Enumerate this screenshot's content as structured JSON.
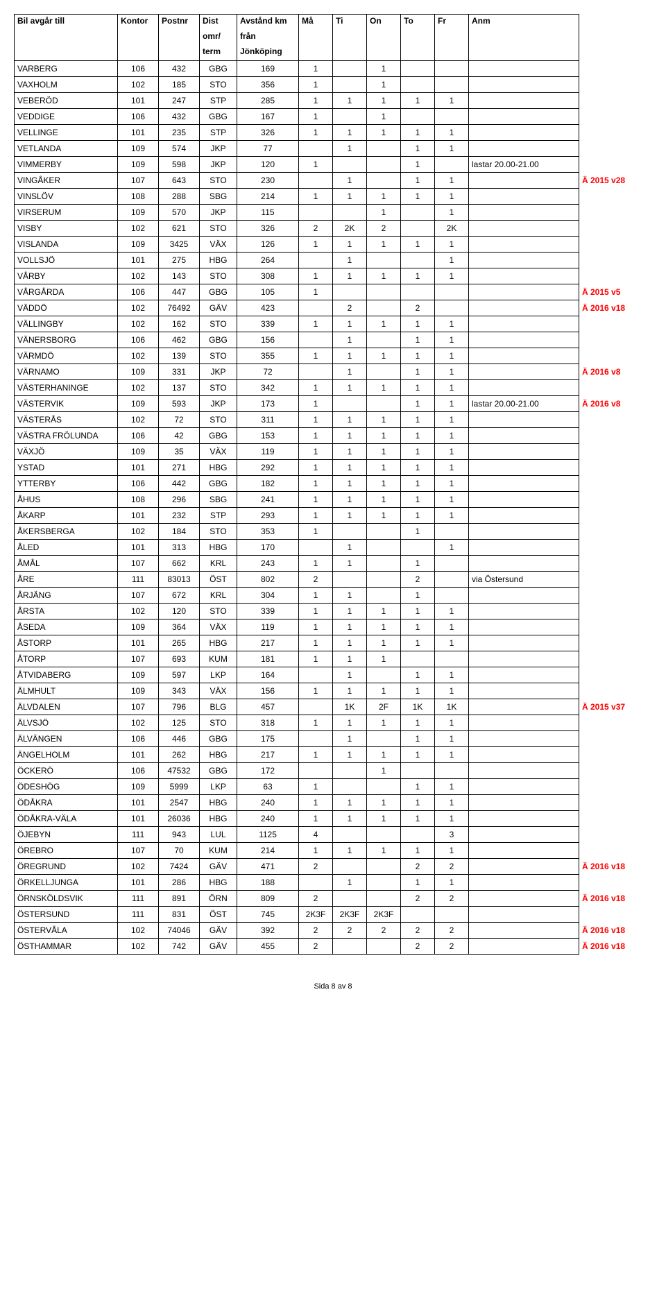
{
  "headers": {
    "col0": "Bil avgår till",
    "col1": "Kontor",
    "col2": "Postnr",
    "col3_line1": "Dist",
    "col3_line2": "omr/",
    "col3_line3": "term",
    "col4_line1": "Avstånd km",
    "col4_line2": "från",
    "col4_line3": "Jönköping",
    "col5": "Må",
    "col6": "Ti",
    "col7": "On",
    "col8": "To",
    "col9": "Fr",
    "col10": "Anm"
  },
  "rows": [
    {
      "name": "VARBERG",
      "kontor": "106",
      "postnr": "432",
      "dist": "GBG",
      "avstand": "169",
      "ma": "1",
      "ti": "",
      "on": "1",
      "to": "",
      "fr": "",
      "anm": "",
      "note": ""
    },
    {
      "name": "VAXHOLM",
      "kontor": "102",
      "postnr": "185",
      "dist": "STO",
      "avstand": "356",
      "ma": "1",
      "ti": "",
      "on": "1",
      "to": "",
      "fr": "",
      "anm": "",
      "note": ""
    },
    {
      "name": "VEBERÖD",
      "kontor": "101",
      "postnr": "247",
      "dist": "STP",
      "avstand": "285",
      "ma": "1",
      "ti": "1",
      "on": "1",
      "to": "1",
      "fr": "1",
      "anm": "",
      "note": ""
    },
    {
      "name": "VEDDIGE",
      "kontor": "106",
      "postnr": "432",
      "dist": "GBG",
      "avstand": "167",
      "ma": "1",
      "ti": "",
      "on": "1",
      "to": "",
      "fr": "",
      "anm": "",
      "note": ""
    },
    {
      "name": "VELLINGE",
      "kontor": "101",
      "postnr": "235",
      "dist": "STP",
      "avstand": "326",
      "ma": "1",
      "ti": "1",
      "on": "1",
      "to": "1",
      "fr": "1",
      "anm": "",
      "note": ""
    },
    {
      "name": "VETLANDA",
      "kontor": "109",
      "postnr": "574",
      "dist": "JKP",
      "avstand": "77",
      "ma": "",
      "ti": "1",
      "on": "",
      "to": "1",
      "fr": "1",
      "anm": "",
      "note": ""
    },
    {
      "name": "VIMMERBY",
      "kontor": "109",
      "postnr": "598",
      "dist": "JKP",
      "avstand": "120",
      "ma": "1",
      "ti": "",
      "on": "",
      "to": "1",
      "fr": "",
      "anm": "lastar 20.00-21.00",
      "note": ""
    },
    {
      "name": "VINGÅKER",
      "kontor": "107",
      "postnr": "643",
      "dist": "STO",
      "avstand": "230",
      "ma": "",
      "ti": "1",
      "on": "",
      "to": "1",
      "fr": "1",
      "anm": "",
      "note": "Ä 2015 v28"
    },
    {
      "name": "VINSLÖV",
      "kontor": "108",
      "postnr": "288",
      "dist": "SBG",
      "avstand": "214",
      "ma": "1",
      "ti": "1",
      "on": "1",
      "to": "1",
      "fr": "1",
      "anm": "",
      "note": ""
    },
    {
      "name": "VIRSERUM",
      "kontor": "109",
      "postnr": "570",
      "dist": "JKP",
      "avstand": "115",
      "ma": "",
      "ti": "",
      "on": "1",
      "to": "",
      "fr": "1",
      "anm": "",
      "note": ""
    },
    {
      "name": "VISBY",
      "kontor": "102",
      "postnr": "621",
      "dist": "STO",
      "avstand": "326",
      "ma": "2",
      "ti": "2K",
      "on": "2",
      "to": "",
      "fr": "2K",
      "anm": "",
      "note": ""
    },
    {
      "name": "VISLANDA",
      "kontor": "109",
      "postnr": "3425",
      "dist": "VÄX",
      "avstand": "126",
      "ma": "1",
      "ti": "1",
      "on": "1",
      "to": "1",
      "fr": "1",
      "anm": "",
      "note": ""
    },
    {
      "name": "VOLLSJÖ",
      "kontor": "101",
      "postnr": "275",
      "dist": "HBG",
      "avstand": "264",
      "ma": "",
      "ti": "1",
      "on": "",
      "to": "",
      "fr": "1",
      "anm": "",
      "note": ""
    },
    {
      "name": "VÅRBY",
      "kontor": "102",
      "postnr": "143",
      "dist": "STO",
      "avstand": "308",
      "ma": "1",
      "ti": "1",
      "on": "1",
      "to": "1",
      "fr": "1",
      "anm": "",
      "note": ""
    },
    {
      "name": "VÅRGÅRDA",
      "kontor": "106",
      "postnr": "447",
      "dist": "GBG",
      "avstand": "105",
      "ma": "1",
      "ti": "",
      "on": "",
      "to": "",
      "fr": "",
      "anm": "",
      "note": "Ä 2015 v5"
    },
    {
      "name": "VÄDDÖ",
      "kontor": "102",
      "postnr": "76492",
      "dist": "GÄV",
      "avstand": "423",
      "ma": "",
      "ti": "2",
      "on": "",
      "to": "2",
      "fr": "",
      "anm": "",
      "note": "Ä 2016 v18"
    },
    {
      "name": "VÄLLINGBY",
      "kontor": "102",
      "postnr": "162",
      "dist": "STO",
      "avstand": "339",
      "ma": "1",
      "ti": "1",
      "on": "1",
      "to": "1",
      "fr": "1",
      "anm": "",
      "note": ""
    },
    {
      "name": "VÄNERSBORG",
      "kontor": "106",
      "postnr": "462",
      "dist": "GBG",
      "avstand": "156",
      "ma": "",
      "ti": "1",
      "on": "",
      "to": "1",
      "fr": "1",
      "anm": "",
      "note": ""
    },
    {
      "name": "VÄRMDÖ",
      "kontor": "102",
      "postnr": "139",
      "dist": "STO",
      "avstand": "355",
      "ma": "1",
      "ti": "1",
      "on": "1",
      "to": "1",
      "fr": "1",
      "anm": "",
      "note": ""
    },
    {
      "name": "VÄRNAMO",
      "kontor": "109",
      "postnr": "331",
      "dist": "JKP",
      "avstand": "72",
      "ma": "",
      "ti": "1",
      "on": "",
      "to": "1",
      "fr": "1",
      "anm": "",
      "note": "Ä 2016 v8"
    },
    {
      "name": "VÄSTERHANINGE",
      "kontor": "102",
      "postnr": "137",
      "dist": "STO",
      "avstand": "342",
      "ma": "1",
      "ti": "1",
      "on": "1",
      "to": "1",
      "fr": "1",
      "anm": "",
      "note": ""
    },
    {
      "name": "VÄSTERVIK",
      "kontor": "109",
      "postnr": "593",
      "dist": "JKP",
      "avstand": "173",
      "ma": "1",
      "ti": "",
      "on": "",
      "to": "1",
      "fr": "1",
      "anm": "lastar 20.00-21.00",
      "note": "Ä 2016 v8"
    },
    {
      "name": "VÄSTERÅS",
      "kontor": "102",
      "postnr": "72",
      "dist": "STO",
      "avstand": "311",
      "ma": "1",
      "ti": "1",
      "on": "1",
      "to": "1",
      "fr": "1",
      "anm": "",
      "note": ""
    },
    {
      "name": "VÄSTRA FRÖLUNDA",
      "kontor": "106",
      "postnr": "42",
      "dist": "GBG",
      "avstand": "153",
      "ma": "1",
      "ti": "1",
      "on": "1",
      "to": "1",
      "fr": "1",
      "anm": "",
      "note": ""
    },
    {
      "name": "VÄXJÖ",
      "kontor": "109",
      "postnr": "35",
      "dist": "VÄX",
      "avstand": "119",
      "ma": "1",
      "ti": "1",
      "on": "1",
      "to": "1",
      "fr": "1",
      "anm": "",
      "note": ""
    },
    {
      "name": "YSTAD",
      "kontor": "101",
      "postnr": "271",
      "dist": "HBG",
      "avstand": "292",
      "ma": "1",
      "ti": "1",
      "on": "1",
      "to": "1",
      "fr": "1",
      "anm": "",
      "note": ""
    },
    {
      "name": "YTTERBY",
      "kontor": "106",
      "postnr": "442",
      "dist": "GBG",
      "avstand": "182",
      "ma": "1",
      "ti": "1",
      "on": "1",
      "to": "1",
      "fr": "1",
      "anm": "",
      "note": ""
    },
    {
      "name": "ÅHUS",
      "kontor": "108",
      "postnr": "296",
      "dist": "SBG",
      "avstand": "241",
      "ma": "1",
      "ti": "1",
      "on": "1",
      "to": "1",
      "fr": "1",
      "anm": "",
      "note": ""
    },
    {
      "name": "ÅKARP",
      "kontor": "101",
      "postnr": "232",
      "dist": "STP",
      "avstand": "293",
      "ma": "1",
      "ti": "1",
      "on": "1",
      "to": "1",
      "fr": "1",
      "anm": "",
      "note": ""
    },
    {
      "name": "ÅKERSBERGA",
      "kontor": "102",
      "postnr": "184",
      "dist": "STO",
      "avstand": "353",
      "ma": "1",
      "ti": "",
      "on": "",
      "to": "1",
      "fr": "",
      "anm": "",
      "note": ""
    },
    {
      "name": "ÅLED",
      "kontor": "101",
      "postnr": "313",
      "dist": "HBG",
      "avstand": "170",
      "ma": "",
      "ti": "1",
      "on": "",
      "to": "",
      "fr": "1",
      "anm": "",
      "note": ""
    },
    {
      "name": "ÅMÅL",
      "kontor": "107",
      "postnr": "662",
      "dist": "KRL",
      "avstand": "243",
      "ma": "1",
      "ti": "1",
      "on": "",
      "to": "1",
      "fr": "",
      "anm": "",
      "note": ""
    },
    {
      "name": "ÅRE",
      "kontor": "111",
      "postnr": "83013",
      "dist": "ÖST",
      "avstand": "802",
      "ma": "2",
      "ti": "",
      "on": "",
      "to": "2",
      "fr": "",
      "anm": "via Östersund",
      "note": ""
    },
    {
      "name": "ÅRJÄNG",
      "kontor": "107",
      "postnr": "672",
      "dist": "KRL",
      "avstand": "304",
      "ma": "1",
      "ti": "1",
      "on": "",
      "to": "1",
      "fr": "",
      "anm": "",
      "note": ""
    },
    {
      "name": "ÅRSTA",
      "kontor": "102",
      "postnr": "120",
      "dist": "STO",
      "avstand": "339",
      "ma": "1",
      "ti": "1",
      "on": "1",
      "to": "1",
      "fr": "1",
      "anm": "",
      "note": ""
    },
    {
      "name": "ÅSEDA",
      "kontor": "109",
      "postnr": "364",
      "dist": "VÄX",
      "avstand": "119",
      "ma": "1",
      "ti": "1",
      "on": "1",
      "to": "1",
      "fr": "1",
      "anm": "",
      "note": ""
    },
    {
      "name": "ÅSTORP",
      "kontor": "101",
      "postnr": "265",
      "dist": "HBG",
      "avstand": "217",
      "ma": "1",
      "ti": "1",
      "on": "1",
      "to": "1",
      "fr": "1",
      "anm": "",
      "note": ""
    },
    {
      "name": "ÅTORP",
      "kontor": "107",
      "postnr": "693",
      "dist": "KUM",
      "avstand": "181",
      "ma": "1",
      "ti": "1",
      "on": "1",
      "to": "",
      "fr": "",
      "anm": "",
      "note": ""
    },
    {
      "name": "ÅTVIDABERG",
      "kontor": "109",
      "postnr": "597",
      "dist": "LKP",
      "avstand": "164",
      "ma": "",
      "ti": "1",
      "on": "",
      "to": "1",
      "fr": "1",
      "anm": "",
      "note": ""
    },
    {
      "name": "ÄLMHULT",
      "kontor": "109",
      "postnr": "343",
      "dist": "VÄX",
      "avstand": "156",
      "ma": "1",
      "ti": "1",
      "on": "1",
      "to": "1",
      "fr": "1",
      "anm": "",
      "note": ""
    },
    {
      "name": "ÄLVDALEN",
      "kontor": "107",
      "postnr": "796",
      "dist": "BLG",
      "avstand": "457",
      "ma": "",
      "ti": "1K",
      "on": "2F",
      "to": "1K",
      "fr": "1K",
      "anm": "",
      "note": "Ä 2015 v37"
    },
    {
      "name": "ÄLVSJÖ",
      "kontor": "102",
      "postnr": "125",
      "dist": "STO",
      "avstand": "318",
      "ma": "1",
      "ti": "1",
      "on": "1",
      "to": "1",
      "fr": "1",
      "anm": "",
      "note": ""
    },
    {
      "name": "ÄLVÄNGEN",
      "kontor": "106",
      "postnr": "446",
      "dist": "GBG",
      "avstand": "175",
      "ma": "",
      "ti": "1",
      "on": "",
      "to": "1",
      "fr": "1",
      "anm": "",
      "note": ""
    },
    {
      "name": "ÄNGELHOLM",
      "kontor": "101",
      "postnr": "262",
      "dist": "HBG",
      "avstand": "217",
      "ma": "1",
      "ti": "1",
      "on": "1",
      "to": "1",
      "fr": "1",
      "anm": "",
      "note": ""
    },
    {
      "name": "ÖCKERÖ",
      "kontor": "106",
      "postnr": "47532",
      "dist": "GBG",
      "avstand": "172",
      "ma": "",
      "ti": "",
      "on": "1",
      "to": "",
      "fr": "",
      "anm": "",
      "note": ""
    },
    {
      "name": "ÖDESHÖG",
      "kontor": "109",
      "postnr": "5999",
      "dist": "LKP",
      "avstand": "63",
      "ma": "1",
      "ti": "",
      "on": "",
      "to": "1",
      "fr": "1",
      "anm": "",
      "note": ""
    },
    {
      "name": "ÖDÅKRA",
      "kontor": "101",
      "postnr": "2547",
      "dist": "HBG",
      "avstand": "240",
      "ma": "1",
      "ti": "1",
      "on": "1",
      "to": "1",
      "fr": "1",
      "anm": "",
      "note": ""
    },
    {
      "name": "ÖDÅKRA-VÄLA",
      "kontor": "101",
      "postnr": "26036",
      "dist": "HBG",
      "avstand": "240",
      "ma": "1",
      "ti": "1",
      "on": "1",
      "to": "1",
      "fr": "1",
      "anm": "",
      "note": ""
    },
    {
      "name": "ÖJEBYN",
      "kontor": "111",
      "postnr": "943",
      "dist": "LUL",
      "avstand": "1125",
      "ma": "4",
      "ti": "",
      "on": "",
      "to": "",
      "fr": "3",
      "anm": "",
      "note": ""
    },
    {
      "name": "ÖREBRO",
      "kontor": "107",
      "postnr": "70",
      "dist": "KUM",
      "avstand": "214",
      "ma": "1",
      "ti": "1",
      "on": "1",
      "to": "1",
      "fr": "1",
      "anm": "",
      "note": ""
    },
    {
      "name": "ÖREGRUND",
      "kontor": "102",
      "postnr": "7424",
      "dist": "GÄV",
      "avstand": "471",
      "ma": "2",
      "ti": "",
      "on": "",
      "to": "2",
      "fr": "2",
      "anm": "",
      "note": "Ä 2016 v18"
    },
    {
      "name": "ÖRKELLJUNGA",
      "kontor": "101",
      "postnr": "286",
      "dist": "HBG",
      "avstand": "188",
      "ma": "",
      "ti": "1",
      "on": "",
      "to": "1",
      "fr": "1",
      "anm": "",
      "note": ""
    },
    {
      "name": "ÖRNSKÖLDSVIK",
      "kontor": "111",
      "postnr": "891",
      "dist": "ÖRN",
      "avstand": "809",
      "ma": "2",
      "ti": "",
      "on": "",
      "to": "2",
      "fr": "2",
      "anm": "",
      "note": "Ä 2016 v18"
    },
    {
      "name": "ÖSTERSUND",
      "kontor": "111",
      "postnr": "831",
      "dist": "ÖST",
      "avstand": "745",
      "ma": "2K3F",
      "ti": "2K3F",
      "on": "2K3F",
      "to": "",
      "fr": "",
      "anm": "",
      "note": ""
    },
    {
      "name": "ÖSTERVÅLA",
      "kontor": "102",
      "postnr": "74046",
      "dist": "GÄV",
      "avstand": "392",
      "ma": "2",
      "ti": "2",
      "on": "2",
      "to": "2",
      "fr": "2",
      "anm": "",
      "note": "Ä 2016 v18"
    },
    {
      "name": "ÖSTHAMMAR",
      "kontor": "102",
      "postnr": "742",
      "dist": "GÄV",
      "avstand": "455",
      "ma": "2",
      "ti": "",
      "on": "",
      "to": "2",
      "fr": "2",
      "anm": "",
      "note": "Ä 2016 v18"
    }
  ],
  "footer": "Sida 8 av 8"
}
